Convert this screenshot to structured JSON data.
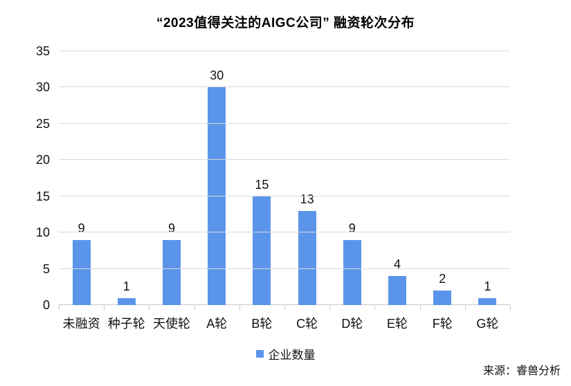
{
  "chart_data": {
    "type": "bar",
    "title": "“2023值得关注的AIGC公司” 融资轮次分布",
    "categories": [
      "未融资",
      "种子轮",
      "天使轮",
      "A轮",
      "B轮",
      "C轮",
      "D轮",
      "E轮",
      "F轮",
      "G轮"
    ],
    "values": [
      9,
      1,
      9,
      30,
      15,
      13,
      9,
      4,
      2,
      1
    ],
    "series_name": "企业数量",
    "xlabel": "",
    "ylabel": "",
    "ylim": [
      0,
      35
    ],
    "yticks": [
      0,
      5,
      10,
      15,
      20,
      25,
      30,
      35
    ],
    "grid": true,
    "legend_position": "bottom",
    "bar_color": "#5b95ea",
    "gridline_color": "#d9d9d9",
    "source": "来源：睿兽分析"
  }
}
